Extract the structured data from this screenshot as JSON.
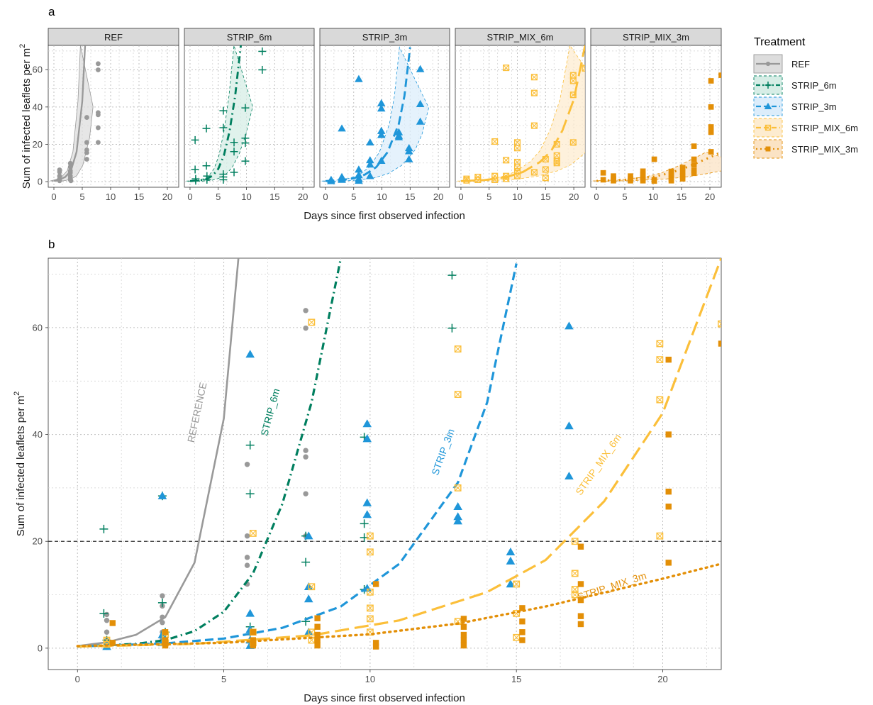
{
  "chart_data": [
    {
      "panel_label": "a",
      "type": "scatter",
      "facets": [
        "REF",
        "STRIP_6m",
        "STRIP_3m",
        "STRIP_MIX_6m",
        "STRIP_MIX_3m"
      ],
      "xlabel": "Days since first observed infection",
      "ylabel": "Sum of infected leaflets per m",
      "ylabel_sup": "2",
      "xlim": [
        -1,
        22
      ],
      "ylim": [
        -3,
        73
      ],
      "xticks": [
        0,
        5,
        10,
        15,
        20
      ],
      "yticks": [
        0,
        20,
        40,
        60
      ],
      "grid": true,
      "legend": {
        "title": "Treatment",
        "placement": "right",
        "entries": [
          "REF",
          "STRIP_6m",
          "STRIP_3m",
          "STRIP_MIX_6m",
          "STRIP_MIX_3m"
        ]
      }
    },
    {
      "panel_label": "b",
      "type": "scatter",
      "xlabel": "Days since first observed infection",
      "ylabel": "Sum of infected leaflets per m",
      "ylabel_sup": "2",
      "xlim": [
        -1,
        22
      ],
      "ylim": [
        -4,
        73
      ],
      "xticks": [
        0,
        5,
        10,
        15,
        20
      ],
      "yticks": [
        0,
        20,
        40,
        60
      ],
      "threshold_y": 20,
      "curve_labels": [
        "REFERENCE",
        "STRIP_6m",
        "STRIP_3m",
        "STRIP_MIX_6m",
        "STRIP_MIX_3m"
      ],
      "series": [
        {
          "name": "REF",
          "color": "#999999",
          "marker": "circle",
          "fit": [
            [
              0,
              0.4
            ],
            [
              1,
              1.1
            ],
            [
              2,
              2.5
            ],
            [
              3,
              5.8
            ],
            [
              4,
              16
            ],
            [
              5,
              43
            ],
            [
              5.5,
              73
            ]
          ],
          "points": [
            [
              1,
              6.3
            ],
            [
              1,
              5.2
            ],
            [
              1,
              3.0
            ],
            [
              1,
              1.5
            ],
            [
              1,
              0.5
            ],
            [
              2.9,
              9.8
            ],
            [
              2.9,
              7.9
            ],
            [
              2.9,
              5.8
            ],
            [
              2.9,
              4.8
            ],
            [
              2.9,
              3.0
            ],
            [
              2.9,
              1.8
            ],
            [
              2.9,
              1.0
            ],
            [
              3.0,
              0.5
            ],
            [
              5.8,
              34.4
            ],
            [
              5.8,
              21.0
            ],
            [
              5.8,
              17.0
            ],
            [
              5.8,
              15.5
            ],
            [
              5.8,
              12.0
            ],
            [
              7.8,
              63.2
            ],
            [
              7.8,
              59.9
            ],
            [
              7.8,
              37.0
            ],
            [
              7.8,
              35.8
            ],
            [
              7.8,
              28.9
            ],
            [
              7.8,
              21.0
            ]
          ]
        },
        {
          "name": "STRIP_6m",
          "color": "#007f5f",
          "marker": "plus",
          "fit": [
            [
              0,
              0.3
            ],
            [
              2,
              0.8
            ],
            [
              3,
              1.5
            ],
            [
              4,
              3.2
            ],
            [
              5,
              6.8
            ],
            [
              6,
              14
            ],
            [
              7,
              27
            ],
            [
              8,
              46
            ],
            [
              9,
              73
            ]
          ],
          "points": [
            [
              0.9,
              22.3
            ],
            [
              0.9,
              6.5
            ],
            [
              1,
              1.5
            ],
            [
              1,
              0.5
            ],
            [
              2.9,
              28.5
            ],
            [
              2.9,
              8.5
            ],
            [
              3,
              3.0
            ],
            [
              3,
              1.0
            ],
            [
              5.9,
              38.0
            ],
            [
              5.9,
              28.9
            ],
            [
              5.9,
              4.0
            ],
            [
              5.9,
              2.5
            ],
            [
              5.9,
              1.0
            ],
            [
              7.8,
              21.0
            ],
            [
              7.8,
              16.1
            ],
            [
              7.8,
              5.0
            ],
            [
              9.8,
              39.5
            ],
            [
              9.8,
              23.3
            ],
            [
              9.8,
              20.7
            ],
            [
              9.8,
              11.0
            ],
            [
              12.8,
              69.8
            ],
            [
              12.8,
              59.9
            ]
          ]
        },
        {
          "name": "STRIP_3m",
          "color": "#1f96d9",
          "marker": "triangle",
          "fit": [
            [
              0,
              0.3
            ],
            [
              3,
              0.9
            ],
            [
              5,
              1.8
            ],
            [
              7,
              3.8
            ],
            [
              9,
              7.8
            ],
            [
              11,
              15.8
            ],
            [
              13,
              31
            ],
            [
              14,
              46
            ],
            [
              15,
              72
            ]
          ],
          "points": [
            [
              1,
              1.0
            ],
            [
              1,
              0.3
            ],
            [
              2.9,
              28.5
            ],
            [
              2.9,
              2.5
            ],
            [
              2.9,
              1.0
            ],
            [
              5.9,
              55.0
            ],
            [
              5.9,
              6.5
            ],
            [
              5.9,
              3.5
            ],
            [
              5.9,
              1.5
            ],
            [
              5.9,
              0.5
            ],
            [
              7.9,
              21.0
            ],
            [
              7.9,
              11.5
            ],
            [
              7.9,
              9.2
            ],
            [
              7.9,
              3.0
            ],
            [
              9.9,
              42.0
            ],
            [
              9.9,
              39.2
            ],
            [
              9.9,
              27.2
            ],
            [
              9.9,
              25.0
            ],
            [
              9.9,
              11.2
            ],
            [
              13.0,
              26.5
            ],
            [
              13.0,
              24.6
            ],
            [
              13.0,
              23.8
            ],
            [
              14.8,
              18.0
            ],
            [
              14.8,
              16.3
            ],
            [
              14.8,
              12.0
            ],
            [
              16.8,
              60.3
            ],
            [
              16.8,
              41.6
            ],
            [
              16.8,
              32.2
            ]
          ]
        },
        {
          "name": "STRIP_MIX_6m",
          "color": "#fbbf3a",
          "marker": "squarecross",
          "fit": [
            [
              0,
              0.3
            ],
            [
              4,
              0.8
            ],
            [
              8,
              2.4
            ],
            [
              11,
              5.2
            ],
            [
              14,
              10.5
            ],
            [
              16,
              16.5
            ],
            [
              18,
              27.5
            ],
            [
              20,
              44
            ],
            [
              22,
              73
            ]
          ],
          "points": [
            [
              1,
              1.5
            ],
            [
              1,
              0.7
            ],
            [
              3,
              2.5
            ],
            [
              3,
              1.0
            ],
            [
              6,
              21.5
            ],
            [
              6,
              3.0
            ],
            [
              6,
              1.0
            ],
            [
              8,
              61.0
            ],
            [
              8,
              11.5
            ],
            [
              8,
              3.0
            ],
            [
              8,
              1.5
            ],
            [
              10,
              21.0
            ],
            [
              10,
              18.0
            ],
            [
              10,
              10.5
            ],
            [
              10,
              7.5
            ],
            [
              10,
              5.5
            ],
            [
              10,
              3.0
            ],
            [
              13,
              56.0
            ],
            [
              13,
              47.5
            ],
            [
              13,
              30.0
            ],
            [
              13,
              5.0
            ],
            [
              15,
              12.0
            ],
            [
              15,
              6.5
            ],
            [
              15,
              2.0
            ],
            [
              17,
              20.0
            ],
            [
              17,
              14.0
            ],
            [
              17,
              11.0
            ],
            [
              17,
              10.0
            ],
            [
              19.9,
              57.0
            ],
            [
              19.9,
              54.0
            ],
            [
              19.9,
              46.5
            ],
            [
              19.9,
              21.0
            ],
            [
              22,
              60.7
            ]
          ]
        },
        {
          "name": "STRIP_MIX_3m",
          "color": "#e38f07",
          "marker": "square",
          "fit": [
            [
              0,
              0.4
            ],
            [
              5,
              1.0
            ],
            [
              10,
              2.6
            ],
            [
              13,
              4.6
            ],
            [
              16,
              7.8
            ],
            [
              18,
              10.4
            ],
            [
              20,
              13.0
            ],
            [
              22,
              15.8
            ]
          ],
          "points": [
            [
              1.2,
              4.7
            ],
            [
              1.2,
              1.0
            ],
            [
              3,
              3.0
            ],
            [
              3,
              1.5
            ],
            [
              3,
              0.5
            ],
            [
              6,
              3.0
            ],
            [
              6,
              1.5
            ],
            [
              6,
              0.5
            ],
            [
              8.2,
              5.6
            ],
            [
              8.2,
              4.0
            ],
            [
              8.2,
              2.5
            ],
            [
              8.2,
              1.5
            ],
            [
              8.2,
              0.5
            ],
            [
              10.2,
              12.0
            ],
            [
              10.2,
              1.0
            ],
            [
              10.2,
              0.3
            ],
            [
              13.2,
              5.5
            ],
            [
              13.2,
              4.0
            ],
            [
              13.2,
              2.5
            ],
            [
              13.2,
              1.5
            ],
            [
              13.2,
              0.5
            ],
            [
              15.2,
              7.5
            ],
            [
              15.2,
              5.0
            ],
            [
              15.2,
              3.0
            ],
            [
              15.2,
              1.5
            ],
            [
              17.2,
              19.0
            ],
            [
              17.2,
              12.0
            ],
            [
              17.2,
              9.0
            ],
            [
              17.2,
              6.0
            ],
            [
              17.2,
              4.5
            ],
            [
              20.2,
              54.0
            ],
            [
              20.2,
              40.0
            ],
            [
              20.2,
              29.3
            ],
            [
              20.2,
              26.5
            ],
            [
              20.2,
              16.0
            ],
            [
              22,
              57.0
            ]
          ]
        }
      ]
    }
  ]
}
